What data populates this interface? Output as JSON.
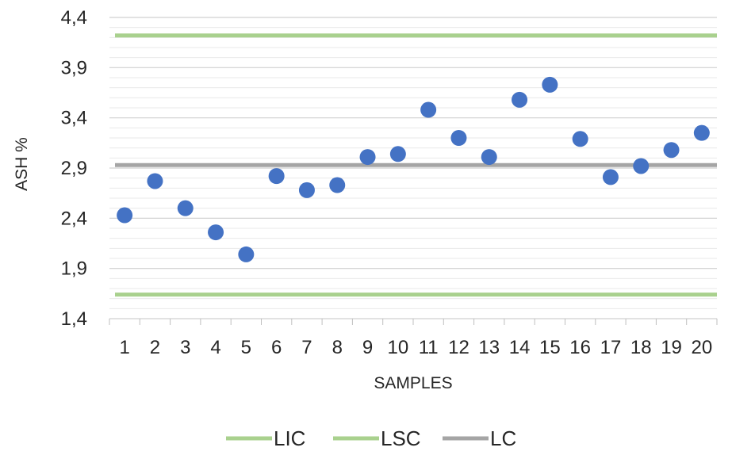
{
  "chart_data": {
    "type": "scatter",
    "title": "",
    "xlabel": "SAMPLES",
    "ylabel": "ASH %",
    "x_categories": [
      "1",
      "2",
      "3",
      "4",
      "5",
      "6",
      "7",
      "8",
      "9",
      "10",
      "11",
      "12",
      "13",
      "14",
      "15",
      "16",
      "17",
      "18",
      "19",
      "20"
    ],
    "y_ticks": [
      "1,4",
      "1,9",
      "2,4",
      "2,9",
      "3,4",
      "3,9",
      "4,4"
    ],
    "ylim": [
      1.4,
      4.4
    ],
    "grid": "horizontal minor and major",
    "points": {
      "values": [
        2.43,
        2.77,
        2.5,
        2.26,
        2.04,
        2.82,
        2.68,
        2.73,
        3.01,
        3.04,
        3.48,
        3.2,
        3.01,
        3.58,
        3.73,
        3.19,
        2.81,
        2.92,
        3.08,
        3.25
      ],
      "color": "#4472c4"
    },
    "lines": [
      {
        "name": "LIC",
        "value": 1.64,
        "color": "#a9d18e"
      },
      {
        "name": "LSC",
        "value": 4.22,
        "color": "#a9d18e"
      },
      {
        "name": "LC",
        "value": 2.93,
        "color": "#a5a5a5"
      }
    ],
    "legend_position": "bottom"
  }
}
